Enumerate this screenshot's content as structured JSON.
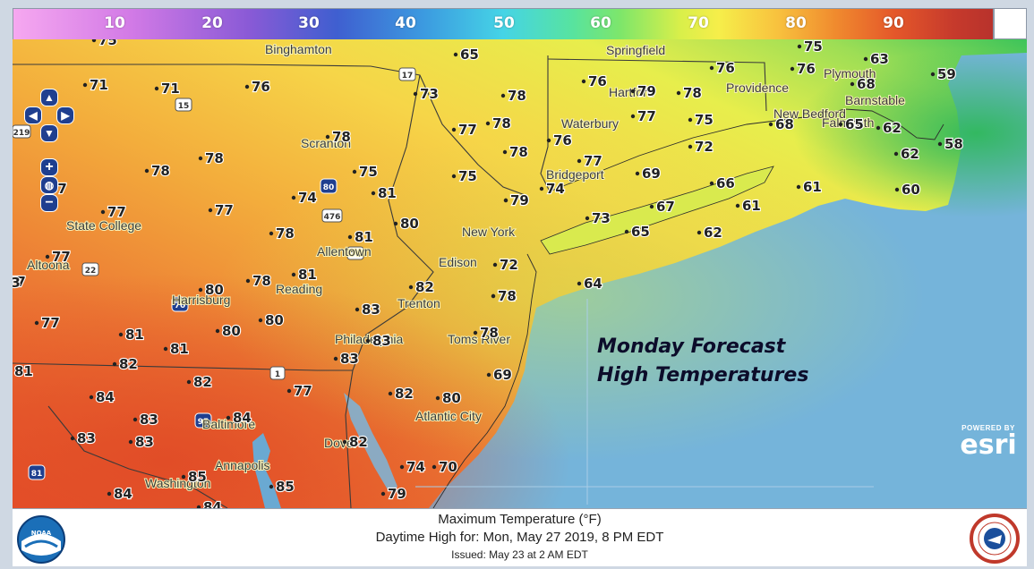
{
  "legend": {
    "ticks": [
      "10",
      "20",
      "30",
      "40",
      "50",
      "60",
      "70",
      "80",
      "90"
    ]
  },
  "map": {
    "temperatures": [
      "75",
      "71",
      "71",
      "76",
      "65",
      "73",
      "78",
      "76",
      "79",
      "78",
      "76",
      "76",
      "75",
      "63",
      "59",
      "68",
      "77",
      "78",
      "78",
      "76",
      "77",
      "75",
      "68",
      "65",
      "62",
      "58",
      "78",
      "78",
      "72",
      "62",
      "78",
      "79",
      "75",
      "69",
      "60",
      "75",
      "77",
      "77",
      "81",
      "74",
      "61",
      "66",
      "77",
      "77",
      "79",
      "74",
      "67",
      "61",
      "78",
      "80",
      "81",
      "73",
      "65",
      "62",
      "77",
      "72",
      "77",
      "80",
      "81",
      "78",
      "82",
      "74",
      "64",
      "73",
      "77",
      "80",
      "81",
      "78",
      "80",
      "83",
      "83",
      "78",
      "81",
      "82",
      "81",
      "84",
      "77",
      "82",
      "83",
      "84",
      "83",
      "69",
      "83",
      "83",
      "80",
      "82",
      "85",
      "82",
      "74",
      "70",
      "84",
      "85",
      "79",
      "84"
    ],
    "cities": [
      "Binghamton",
      "Springfield",
      "Hartford",
      "Providence",
      "Plymouth",
      "Barnstable",
      "New Bedford",
      "Falmouth",
      "Waterbury",
      "Scranton",
      "Bridgeport",
      "State College",
      "New York",
      "Allentown",
      "Edison",
      "Altoona",
      "Reading",
      "Harrisburg",
      "Trenton",
      "Philadelphia",
      "Toms River",
      "Baltimore",
      "Atlantic City",
      "Dover",
      "Annapolis",
      "Washington"
    ],
    "highway_shields": [
      "15",
      "17",
      "219",
      "80",
      "476",
      "22",
      "76",
      "1",
      "70",
      "95",
      "81"
    ],
    "title_line1": "Monday Forecast",
    "title_line2": "High Temperatures"
  },
  "controls": {
    "pan_icon": "pan-arrows-icon",
    "zoom_in": "+",
    "zoom_out": "−",
    "globe_icon": "globe-icon"
  },
  "branding": {
    "esri_powered": "POWERED BY",
    "esri_name": "esri"
  },
  "footer": {
    "line1": "Maximum Temperature (°F)",
    "line2": "Daytime High for: Mon, May 27 2019,   8 PM EDT",
    "line3": "Issued: May 23 at 2 AM EDT"
  },
  "colors": {
    "ocean": "#75b4da",
    "hot": "#e8552c",
    "warm": "#f29a3a",
    "mild": "#f6d84a",
    "cool": "#8fd24e",
    "cold": "#3fc65a"
  }
}
